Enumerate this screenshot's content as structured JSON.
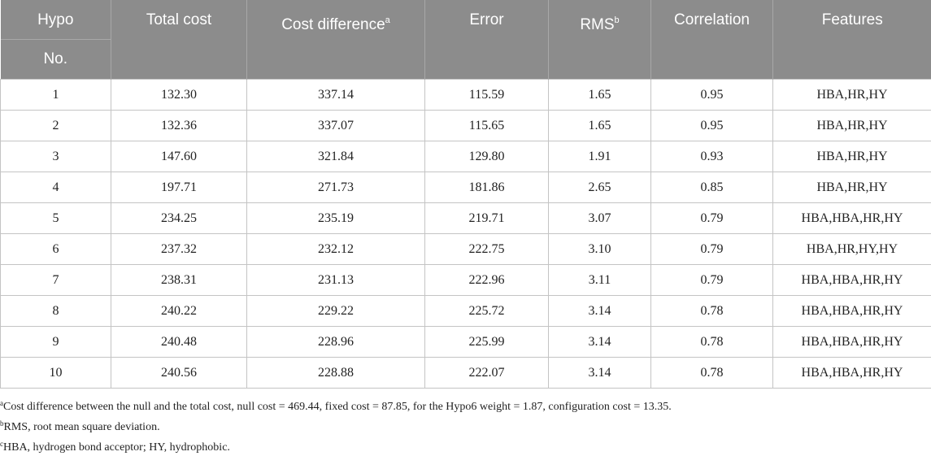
{
  "table": {
    "headers": {
      "hypo_line1": "Hypo",
      "hypo_line2": "No.",
      "total_cost": "Total cost",
      "cost_difference": "Cost difference",
      "cost_difference_mark": "a",
      "error": "Error",
      "rms": "RMS",
      "rms_mark": "b",
      "correlation": "Correlation",
      "features": "Features"
    },
    "rows": [
      [
        "1",
        "132.30",
        "337.14",
        "115.59",
        "1.65",
        "0.95",
        "HBA,HR,HY"
      ],
      [
        "2",
        "132.36",
        "337.07",
        "115.65",
        "1.65",
        "0.95",
        "HBA,HR,HY"
      ],
      [
        "3",
        "147.60",
        "321.84",
        "129.80",
        "1.91",
        "0.93",
        "HBA,HR,HY"
      ],
      [
        "4",
        "197.71",
        "271.73",
        "181.86",
        "2.65",
        "0.85",
        "HBA,HR,HY"
      ],
      [
        "5",
        "234.25",
        "235.19",
        "219.71",
        "3.07",
        "0.79",
        "HBA,HBA,HR,HY"
      ],
      [
        "6",
        "237.32",
        "232.12",
        "222.75",
        "3.10",
        "0.79",
        "HBA,HR,HY,HY"
      ],
      [
        "7",
        "238.31",
        "231.13",
        "222.96",
        "3.11",
        "0.79",
        "HBA,HBA,HR,HY"
      ],
      [
        "8",
        "240.22",
        "229.22",
        "225.72",
        "3.14",
        "0.78",
        "HBA,HBA,HR,HY"
      ],
      [
        "9",
        "240.48",
        "228.96",
        "225.99",
        "3.14",
        "0.78",
        "HBA,HBA,HR,HY"
      ],
      [
        "10",
        "240.56",
        "228.88",
        "222.07",
        "3.14",
        "0.78",
        "HBA,HBA,HR,HY"
      ]
    ]
  },
  "footnotes": [
    {
      "mark": "a",
      "text": "Cost difference between the null and the total cost, null cost = 469.44, fixed cost = 87.85, for the Hypo6 weight = 1.87, configuration cost = 13.35."
    },
    {
      "mark": "b",
      "text": "RMS, root mean square deviation."
    },
    {
      "mark": "c",
      "text": "HBA, hydrogen bond acceptor; HY, hydrophobic."
    }
  ]
}
